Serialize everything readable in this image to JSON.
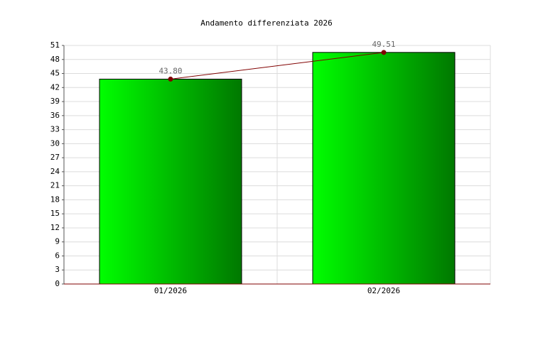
{
  "chart_data": {
    "type": "bar",
    "title": "Andamento differenziata 2026",
    "categories": [
      "01/2026",
      "02/2026"
    ],
    "values": [
      43.8,
      49.51
    ],
    "value_labels": [
      "43.80",
      "49.51"
    ],
    "color": "#00ff00",
    "gradient_end": "#007800",
    "line_color": "#800000",
    "ylim": [
      0,
      51
    ],
    "yticks": [
      0,
      3,
      6,
      9,
      12,
      15,
      18,
      21,
      24,
      27,
      30,
      33,
      36,
      39,
      42,
      45,
      48,
      51
    ],
    "grid": true
  }
}
